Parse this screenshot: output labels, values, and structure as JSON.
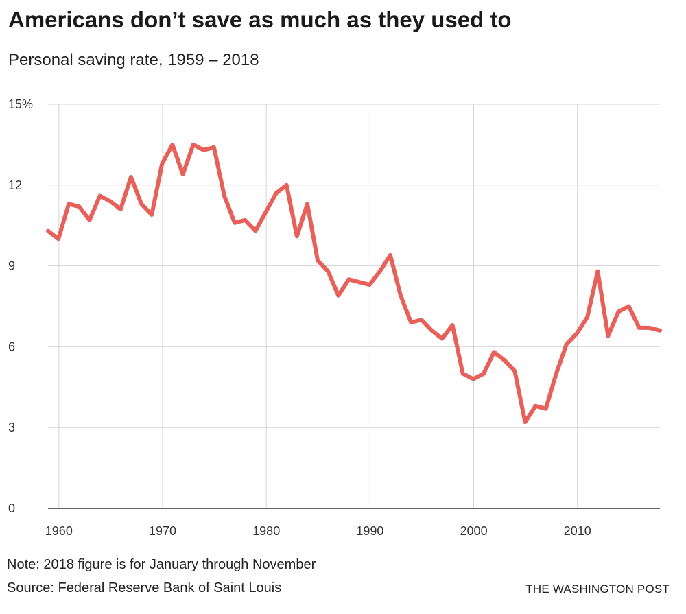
{
  "header": {
    "title": "Americans don’t save as much as they used to",
    "subtitle": "Personal saving rate, 1959 – 2018"
  },
  "footer": {
    "note": "Note: 2018 figure is for January through November",
    "source": "Source: Federal Reserve Bank of Saint Louis",
    "credit": "THE WASHINGTON POST"
  },
  "colors": {
    "line": "#e8605a",
    "grid": "#d4d4d4",
    "axis": "#333333"
  },
  "chart_data": {
    "type": "line",
    "title": "Americans don’t save as much as they used to",
    "subtitle": "Personal saving rate, 1959 – 2018",
    "xlabel": "",
    "ylabel": "",
    "xlim": [
      1959,
      2018
    ],
    "ylim": [
      0,
      15
    ],
    "x_ticks": [
      1960,
      1970,
      1980,
      1990,
      2000,
      2010
    ],
    "y_ticks": [
      0,
      3,
      6,
      9,
      12,
      15
    ],
    "y_tick_labels": [
      "0",
      "3",
      "6",
      "9",
      "12",
      "15%"
    ],
    "grid": true,
    "series": [
      {
        "name": "Personal saving rate",
        "x": [
          1959,
          1960,
          1961,
          1962,
          1963,
          1964,
          1965,
          1966,
          1967,
          1968,
          1969,
          1970,
          1971,
          1972,
          1973,
          1974,
          1975,
          1976,
          1977,
          1978,
          1979,
          1980,
          1981,
          1982,
          1983,
          1984,
          1985,
          1986,
          1987,
          1988,
          1989,
          1990,
          1991,
          1992,
          1993,
          1994,
          1995,
          1996,
          1997,
          1998,
          1999,
          2000,
          2001,
          2002,
          2003,
          2004,
          2005,
          2006,
          2007,
          2008,
          2009,
          2010,
          2011,
          2012,
          2013,
          2014,
          2015,
          2016,
          2017,
          2018
        ],
        "values": [
          10.3,
          10.0,
          11.3,
          11.2,
          10.7,
          11.6,
          11.4,
          11.1,
          12.3,
          11.3,
          10.9,
          12.8,
          13.5,
          12.4,
          13.5,
          13.3,
          13.4,
          11.6,
          10.6,
          10.7,
          10.3,
          11.0,
          11.7,
          12.0,
          10.1,
          11.3,
          9.2,
          8.8,
          7.9,
          8.5,
          8.4,
          8.3,
          8.8,
          9.4,
          7.9,
          6.9,
          7.0,
          6.6,
          6.3,
          6.8,
          5.0,
          4.8,
          5.0,
          5.8,
          5.5,
          5.1,
          3.2,
          3.8,
          3.7,
          5.0,
          6.1,
          6.5,
          7.1,
          8.8,
          6.4,
          7.3,
          7.5,
          6.7,
          6.7,
          6.6
        ]
      }
    ]
  }
}
